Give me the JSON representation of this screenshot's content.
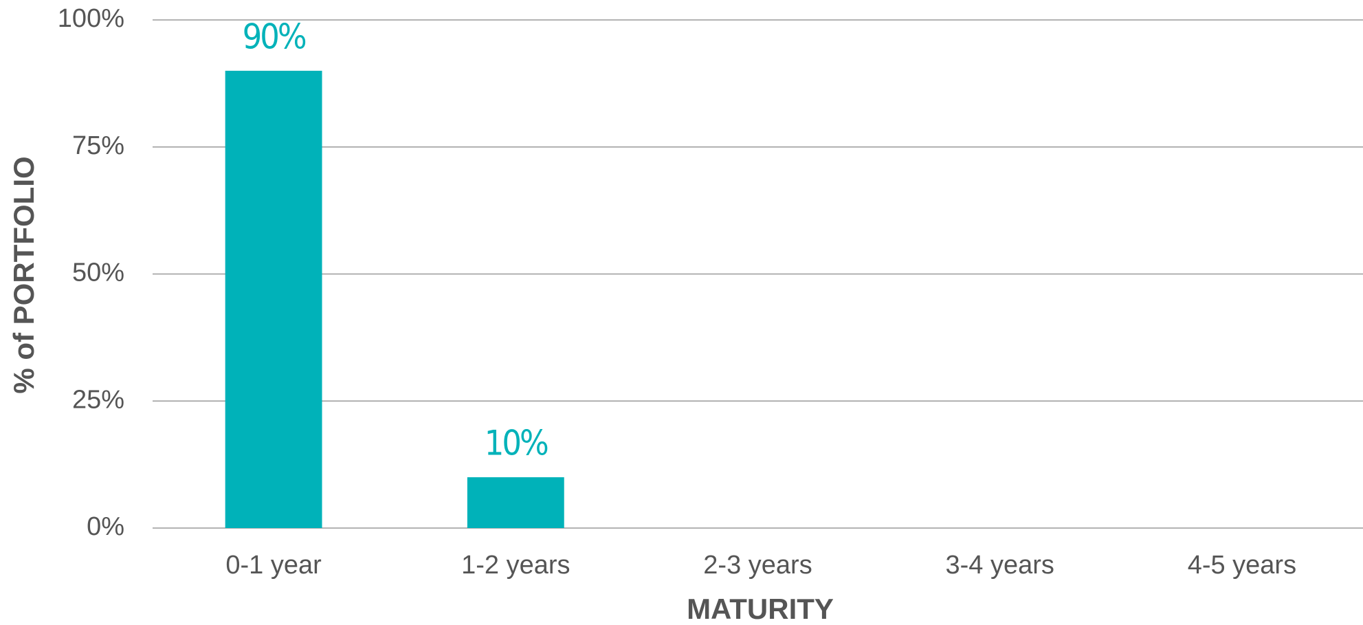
{
  "chart_data": {
    "type": "bar",
    "categories": [
      "0-1 year",
      "1-2 years",
      "2-3 years",
      "3-4 years",
      "4-5 years"
    ],
    "values": [
      90,
      10,
      0,
      0,
      0
    ],
    "value_labels": [
      "90%",
      "10%",
      null,
      null,
      null
    ],
    "color": "#00b2b9",
    "xlabel": "MATURITY",
    "ylabel": "% of PORTFOLIO",
    "ylim": [
      0,
      100
    ],
    "yticks": [
      {
        "value": 0,
        "label": "0%"
      },
      {
        "value": 25,
        "label": "25%"
      },
      {
        "value": 50,
        "label": "50%"
      },
      {
        "value": 75,
        "label": "75%"
      },
      {
        "value": 100,
        "label": "100%"
      }
    ],
    "grid": true
  }
}
